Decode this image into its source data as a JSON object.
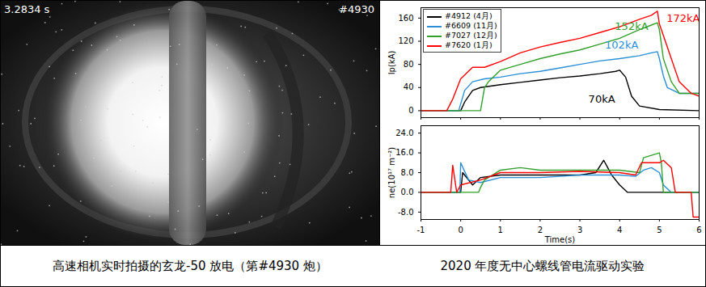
{
  "photo": {
    "timestamp": "3.2834 s",
    "shot": "#4930",
    "caption": "高速相机实时拍摄的玄龙-50 放电（第#4930 炮）"
  },
  "charts_caption": "2020 年度无中心螺线管电流驱动实验",
  "chart_data": [
    {
      "type": "line",
      "y_label": "Ip(kA)",
      "xlim": [
        -1,
        6
      ],
      "xticks": [
        -1,
        0,
        1,
        2,
        3,
        4,
        5,
        6
      ],
      "ylim": [
        -12,
        178
      ],
      "yticks": [
        0,
        40,
        80,
        120,
        160
      ],
      "tick_labels": "y",
      "legend": "upper left",
      "series": [
        {
          "name": "#4912 (4月)",
          "color": "#000000",
          "x": [
            -1,
            0,
            0.1,
            0.3,
            0.5,
            1,
            1.5,
            2,
            2.5,
            3,
            3.5,
            3.9,
            4.0,
            4.15,
            4.3,
            4.5,
            5,
            6
          ],
          "values": [
            0,
            0,
            15,
            35,
            40,
            45,
            49,
            53,
            57,
            60,
            64,
            68,
            70,
            58,
            25,
            8,
            2,
            0
          ]
        },
        {
          "name": "#6609 (11月)",
          "color": "#2a8fd6",
          "x": [
            -1,
            -0.05,
            0.1,
            0.3,
            0.6,
            1,
            1.5,
            2,
            2.5,
            3,
            3.5,
            4,
            4.5,
            4.8,
            4.95,
            5.0,
            5.1,
            5.2,
            5.5,
            6
          ],
          "values": [
            0,
            0,
            35,
            50,
            55,
            58,
            64,
            68,
            74,
            80,
            86,
            90,
            95,
            100,
            102,
            90,
            60,
            40,
            30,
            30
          ]
        },
        {
          "name": "#7027 (12月)",
          "color": "#33a02c",
          "x": [
            -1,
            0.5,
            0.6,
            0.7,
            1,
            1.5,
            2,
            2.5,
            3,
            3.5,
            4,
            4.5,
            4.8,
            4.95,
            5.0,
            5.1,
            5.3,
            5.5,
            6
          ],
          "values": [
            0,
            0,
            40,
            50,
            70,
            80,
            90,
            98,
            105,
            115,
            125,
            140,
            148,
            152,
            140,
            90,
            50,
            30,
            30
          ]
        },
        {
          "name": "#7620 (1月)",
          "color": "#ff0000",
          "x": [
            -1,
            -0.35,
            -0.2,
            0,
            0.3,
            0.6,
            1,
            1.5,
            2,
            2.5,
            3,
            3.5,
            4,
            4.5,
            4.8,
            4.95,
            5.0,
            5.2,
            5.5,
            5.8,
            6
          ],
          "values": [
            0,
            0,
            20,
            55,
            75,
            75,
            85,
            100,
            110,
            118,
            125,
            135,
            145,
            158,
            165,
            172,
            150,
            110,
            50,
            30,
            25
          ]
        }
      ],
      "annotations": [
        {
          "text": "70kA",
          "x": 3.55,
          "y": 20,
          "color": "#000000"
        },
        {
          "text": "102kA",
          "x": 4.05,
          "y": 113,
          "color": "#2a8fd6"
        },
        {
          "text": "152kA",
          "x": 4.3,
          "y": 145,
          "color": "#33a02c"
        },
        {
          "text": "172kA",
          "x": 5.6,
          "y": 160,
          "color": "#ff0000"
        }
      ]
    },
    {
      "type": "line",
      "x_label": "Time(s)",
      "y_label": "ne(10¹⁷ m⁻²)",
      "xlim": [
        -1,
        6
      ],
      "xticks": [
        -1,
        0,
        1,
        2,
        3,
        4,
        5,
        6
      ],
      "ylim": [
        -11,
        27
      ],
      "yticks": [
        {
          "value": -8,
          "label": "-8.0"
        },
        {
          "value": 0,
          "label": "0.0"
        },
        {
          "value": 8,
          "label": "8.0"
        },
        {
          "value": 16,
          "label": "16.0"
        },
        {
          "value": 24,
          "label": "24.0"
        }
      ],
      "series": [
        {
          "color": "#000000",
          "x": [
            -1,
            0,
            0.05,
            0.3,
            0.5,
            1,
            2,
            3,
            3.4,
            3.6,
            3.7,
            3.8,
            4.0,
            4.2,
            6
          ],
          "values": [
            0,
            0,
            8,
            3,
            6,
            7,
            7,
            7,
            8,
            13,
            10,
            7,
            3,
            0,
            0
          ]
        },
        {
          "color": "#2a8fd6",
          "x": [
            -1,
            -0.02,
            0.0,
            0.2,
            0.5,
            1,
            2,
            3,
            4,
            4.4,
            4.6,
            4.8,
            5.0,
            5.1,
            5.3,
            6
          ],
          "values": [
            0,
            0,
            12,
            5,
            4,
            6,
            6,
            7,
            7,
            6.5,
            9,
            10,
            8,
            3,
            0,
            0
          ]
        },
        {
          "color": "#33a02c",
          "x": [
            -1,
            0.45,
            0.5,
            0.6,
            1,
            1.5,
            2,
            3,
            4,
            4.5,
            4.6,
            4.8,
            5.0,
            5.05,
            5.1,
            6
          ],
          "values": [
            0,
            0,
            2,
            5,
            9,
            10,
            9,
            9,
            9,
            8,
            14,
            15,
            16,
            12,
            0,
            0
          ]
        },
        {
          "color": "#ff0000",
          "x": [
            -1,
            -0.25,
            -0.2,
            -0.1,
            0,
            0.5,
            1,
            2,
            3,
            4,
            4.4,
            4.55,
            5.0,
            5.1,
            5.3,
            5.4,
            5.8,
            5.85,
            6
          ],
          "values": [
            0,
            0,
            11,
            0,
            3,
            5,
            8,
            8,
            8.5,
            8,
            7,
            12,
            12,
            13,
            10,
            0,
            0,
            -10,
            -10
          ]
        }
      ]
    }
  ]
}
